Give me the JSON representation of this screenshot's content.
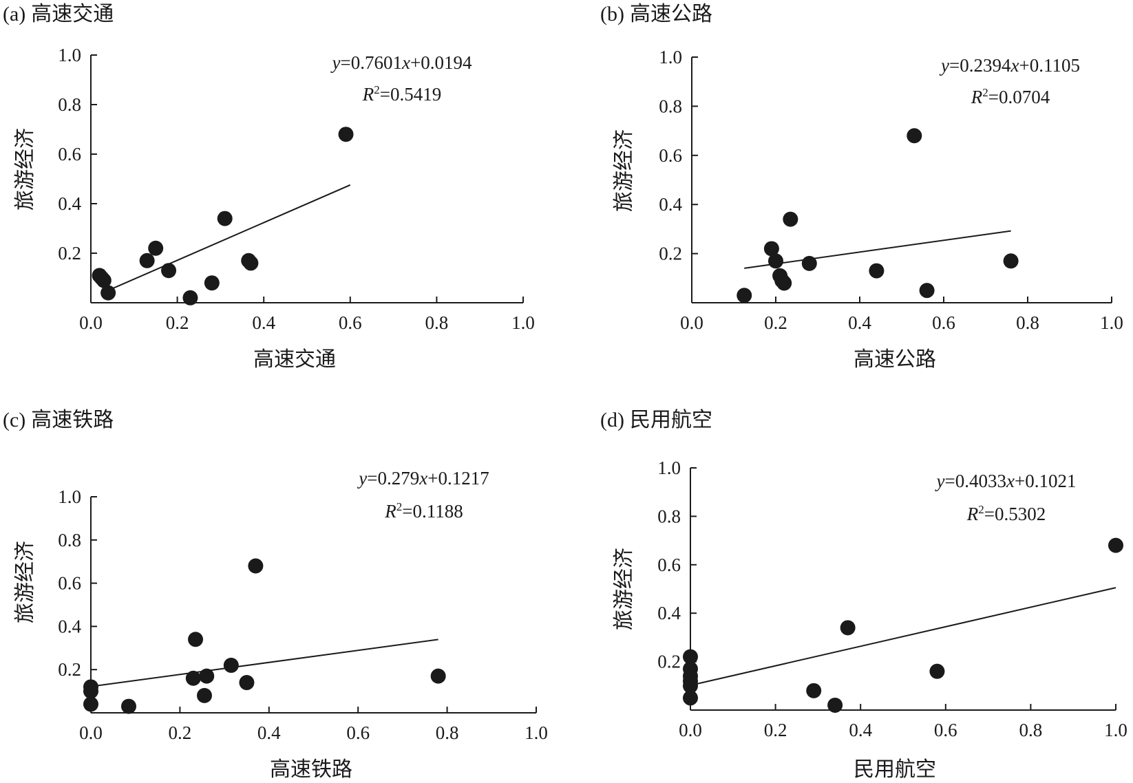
{
  "figure": {
    "y_label": "旅游经济"
  },
  "chart_data": [
    {
      "type": "scatter",
      "panel_label": "(a)",
      "title": "高速交通",
      "xlabel": "高速交通",
      "ylabel": "旅游经济",
      "xlim": [
        0,
        1.0
      ],
      "ylim": [
        0,
        1.0
      ],
      "xticks": [
        "0.0",
        "0.2",
        "0.4",
        "0.6",
        "0.8",
        "1.0"
      ],
      "yticks": [
        "0.2",
        "0.4",
        "0.6",
        "0.8",
        "1.0"
      ],
      "equation": {
        "y": "y",
        "eq1": "=0.7601",
        "x": "x",
        "eq2": "+0.0194",
        "r": "R",
        "sup": "2",
        "r2": "=0.5419"
      },
      "fit": {
        "slope": 0.7601,
        "intercept": 0.0194,
        "x_range": [
          0.04,
          0.6
        ]
      },
      "points": [
        {
          "x": 0.59,
          "y": 0.68
        },
        {
          "x": 0.31,
          "y": 0.34
        },
        {
          "x": 0.15,
          "y": 0.22
        },
        {
          "x": 0.13,
          "y": 0.17
        },
        {
          "x": 0.18,
          "y": 0.13
        },
        {
          "x": 0.365,
          "y": 0.17
        },
        {
          "x": 0.37,
          "y": 0.16
        },
        {
          "x": 0.28,
          "y": 0.08
        },
        {
          "x": 0.23,
          "y": 0.02
        },
        {
          "x": 0.04,
          "y": 0.04
        },
        {
          "x": 0.02,
          "y": 0.11
        },
        {
          "x": 0.025,
          "y": 0.1
        },
        {
          "x": 0.03,
          "y": 0.09
        }
      ]
    },
    {
      "type": "scatter",
      "panel_label": "(b)",
      "title": "高速公路",
      "xlabel": "高速公路",
      "ylabel": "旅游经济",
      "xlim": [
        0,
        1.0
      ],
      "ylim": [
        0,
        1.0
      ],
      "xticks": [
        "0.0",
        "0.2",
        "0.4",
        "0.6",
        "0.8",
        "1.0"
      ],
      "yticks": [
        "0.2",
        "0.4",
        "0.6",
        "0.8",
        "1.0"
      ],
      "equation": {
        "y": "y",
        "eq1": "=0.2394",
        "x": "x",
        "eq2": "+0.1105",
        "r": "R",
        "sup": "2",
        "r2": "=0.0704"
      },
      "fit": {
        "slope": 0.2394,
        "intercept": 0.1105,
        "x_range": [
          0.125,
          0.76
        ]
      },
      "points": [
        {
          "x": 0.53,
          "y": 0.68
        },
        {
          "x": 0.235,
          "y": 0.34
        },
        {
          "x": 0.19,
          "y": 0.22
        },
        {
          "x": 0.2,
          "y": 0.17
        },
        {
          "x": 0.28,
          "y": 0.16
        },
        {
          "x": 0.76,
          "y": 0.17
        },
        {
          "x": 0.44,
          "y": 0.13
        },
        {
          "x": 0.21,
          "y": 0.11
        },
        {
          "x": 0.215,
          "y": 0.09
        },
        {
          "x": 0.22,
          "y": 0.08
        },
        {
          "x": 0.56,
          "y": 0.05
        },
        {
          "x": 0.125,
          "y": 0.03
        }
      ]
    },
    {
      "type": "scatter",
      "panel_label": "(c)",
      "title": "高速铁路",
      "xlabel": "高速铁路",
      "ylabel": "旅游经济",
      "xlim": [
        0,
        1.0
      ],
      "ylim": [
        0,
        1.0
      ],
      "xticks": [
        "0.0",
        "0.2",
        "0.4",
        "0.6",
        "0.8",
        "1.0"
      ],
      "yticks": [
        "0.2",
        "0.4",
        "0.6",
        "0.8",
        "1.0"
      ],
      "equation": {
        "y": "y",
        "eq1": "=0.279",
        "x": "x",
        "eq2": "+0.1217",
        "r": "R",
        "sup": "2",
        "r2": "=0.1188"
      },
      "fit": {
        "slope": 0.279,
        "intercept": 0.1217,
        "x_range": [
          0.0,
          0.78
        ]
      },
      "points": [
        {
          "x": 0.37,
          "y": 0.68
        },
        {
          "x": 0.235,
          "y": 0.34
        },
        {
          "x": 0.315,
          "y": 0.22
        },
        {
          "x": 0.23,
          "y": 0.16
        },
        {
          "x": 0.26,
          "y": 0.17
        },
        {
          "x": 0.35,
          "y": 0.14
        },
        {
          "x": 0.78,
          "y": 0.17
        },
        {
          "x": 0.255,
          "y": 0.08
        },
        {
          "x": 0.085,
          "y": 0.03
        },
        {
          "x": 0.0,
          "y": 0.12
        },
        {
          "x": 0.0,
          "y": 0.1
        },
        {
          "x": 0.0,
          "y": 0.04
        }
      ]
    },
    {
      "type": "scatter",
      "panel_label": "(d)",
      "title": "民用航空",
      "xlabel": "民用航空",
      "ylabel": "旅游经济",
      "xlim": [
        0,
        1.0
      ],
      "ylim": [
        0,
        1.0
      ],
      "xticks": [
        "0.0",
        "0.2",
        "0.4",
        "0.6",
        "0.8",
        "1.0"
      ],
      "yticks": [
        "0.2",
        "0.4",
        "0.6",
        "0.8",
        "1.0"
      ],
      "equation": {
        "y": "y",
        "eq1": "=0.4033",
        "x": "x",
        "eq2": "+0.1021",
        "r": "R",
        "sup": "2",
        "r2": "=0.5302"
      },
      "fit": {
        "slope": 0.4033,
        "intercept": 0.1021,
        "x_range": [
          0.0,
          1.0
        ]
      },
      "points": [
        {
          "x": 1.0,
          "y": 0.68
        },
        {
          "x": 0.37,
          "y": 0.34
        },
        {
          "x": 0.58,
          "y": 0.16
        },
        {
          "x": 0.29,
          "y": 0.08
        },
        {
          "x": 0.34,
          "y": 0.02
        },
        {
          "x": 0.0,
          "y": 0.22
        },
        {
          "x": 0.0,
          "y": 0.17
        },
        {
          "x": 0.0,
          "y": 0.14
        },
        {
          "x": 0.0,
          "y": 0.12
        },
        {
          "x": 0.0,
          "y": 0.1
        },
        {
          "x": 0.0,
          "y": 0.05
        }
      ]
    }
  ]
}
